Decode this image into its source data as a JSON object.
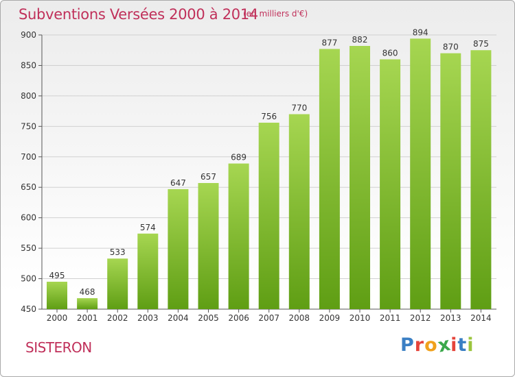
{
  "header": {
    "title": "Subventions Versées 2000 à 2014",
    "subtitle": "(en milliers d'€)"
  },
  "footer": {
    "commune": "SISTERON",
    "logo_letters": [
      "P",
      "r",
      "o",
      "x",
      "i",
      "t",
      "i"
    ],
    "logo_colors": [
      "#3a7fc4",
      "#e5443b",
      "#f0a11c",
      "#3aa84a",
      "#e5443b",
      "#3a7fc4",
      "#9bc53d"
    ]
  },
  "colors": {
    "title": "#c0305a",
    "bar_light": "#a6d651",
    "bar_dark": "#5f9e14",
    "grid": "#d0d0d0",
    "axis": "#555555"
  },
  "chart_data": {
    "type": "bar",
    "title": "Subventions Versées 2000 à 2014",
    "subtitle": "(en milliers d'€)",
    "xlabel": "",
    "ylabel": "",
    "categories": [
      "2000",
      "2001",
      "2002",
      "2003",
      "2004",
      "2005",
      "2006",
      "2007",
      "2008",
      "2009",
      "2010",
      "2011",
      "2012",
      "2013",
      "2014"
    ],
    "values": [
      495,
      468,
      533,
      574,
      647,
      657,
      689,
      756,
      770,
      877,
      882,
      860,
      894,
      870,
      875
    ],
    "ylim": [
      450,
      900
    ],
    "yticks": [
      450,
      500,
      550,
      600,
      650,
      700,
      750,
      800,
      850,
      900
    ],
    "grid": true,
    "data_labels": true
  }
}
